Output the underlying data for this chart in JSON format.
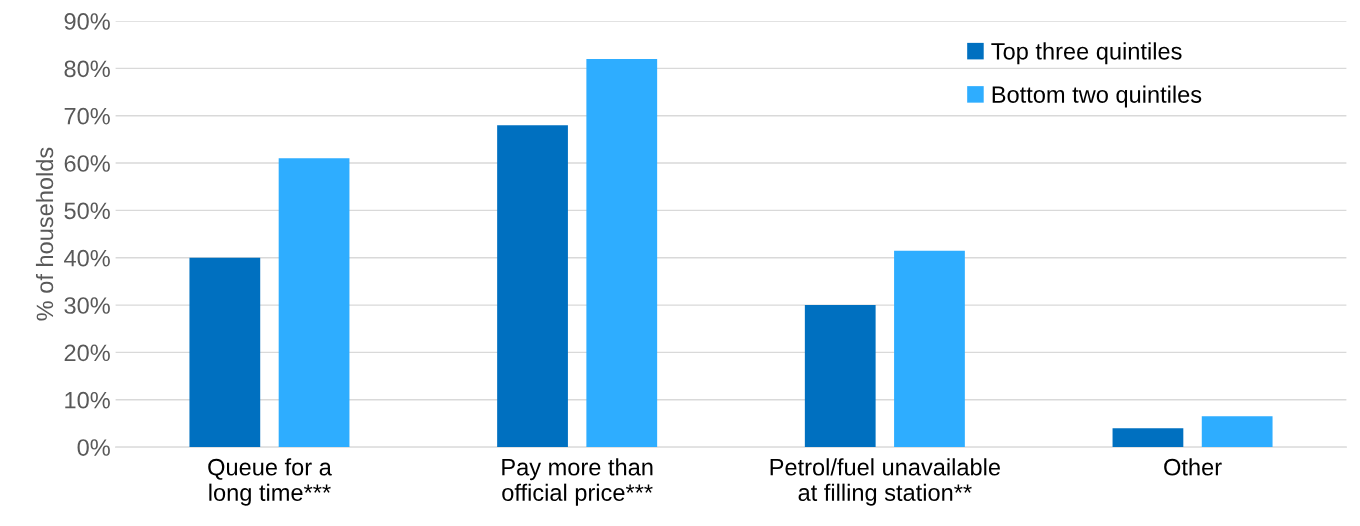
{
  "chart_data": {
    "type": "bar",
    "ylabel": "% of households",
    "categories": [
      "Queue for a\nlong time***",
      "Pay more than\nofficial price***",
      "Petrol/fuel unavailable\nat filling station**",
      "Other"
    ],
    "series": [
      {
        "name": "Top three quintiles",
        "color": "#0070c0",
        "values": [
          40,
          68,
          30,
          4
        ]
      },
      {
        "name": "Bottom two quintiles",
        "color": "#2eadff",
        "values": [
          61,
          82,
          41.5,
          6.5
        ]
      }
    ],
    "ylim": [
      0,
      90
    ],
    "yticks": [
      {
        "value": 0,
        "label": "0%"
      },
      {
        "value": 10,
        "label": "10%"
      },
      {
        "value": 20,
        "label": "20%"
      },
      {
        "value": 30,
        "label": "30%"
      },
      {
        "value": 40,
        "label": "40%"
      },
      {
        "value": 50,
        "label": "50%"
      },
      {
        "value": 60,
        "label": "60%"
      },
      {
        "value": 70,
        "label": "70%"
      },
      {
        "value": 80,
        "label": "80%"
      },
      {
        "value": 90,
        "label": "90%"
      }
    ],
    "grid": "y",
    "legend": "top right"
  }
}
